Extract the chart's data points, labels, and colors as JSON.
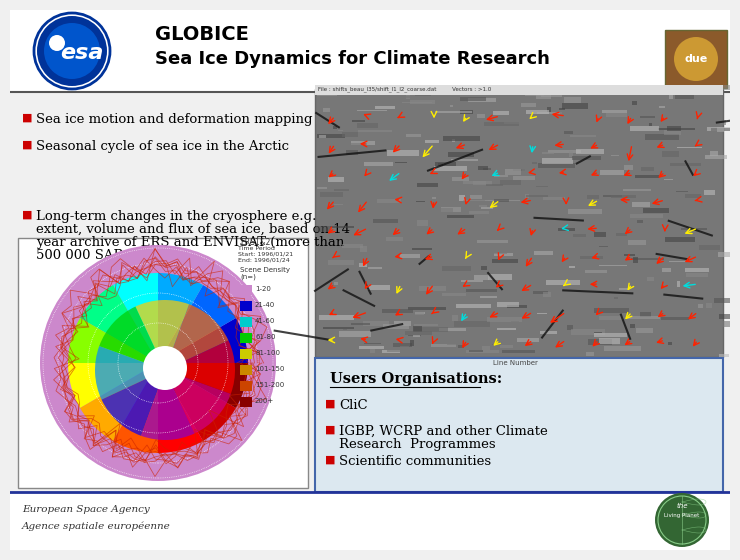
{
  "title_line1": "GLOBICE",
  "title_line2": "Sea Ice Dynamics for Climate Research",
  "bg_color": "#f0f0f0",
  "header_bg": "#ffffff",
  "bullet_color": "#cc0000",
  "bullet_items": [
    "Sea ice motion and deformation mapping",
    "Seasonal cycle of sea ice in the Arctic",
    "Long-term changes in the cryosphere e.g.\nextent, volume and flux of sea ice, based on 14\nyear archive of ERS and ENVISAT (more than\n500 000 SAR scenes)"
  ],
  "users_title": "Users Organisations:",
  "users_items": [
    "CliC",
    "IGBP, WCRP and other Climate\nResearch  Programmes",
    "Scientific communities"
  ],
  "footer_left_line1": "European Space Agency",
  "footer_left_line2": "Agence spatiale européenne",
  "title_fontsize": 14,
  "subtitle_fontsize": 13,
  "bullet_fontsize": 9.5,
  "users_fontsize": 9.5,
  "footer_fontsize": 7.5,
  "users_title_fontsize": 10.5,
  "polar_colors": [
    "#cc88cc",
    "#0000cc",
    "#00cccc",
    "#00cc00",
    "#cccc00",
    "#cc8800",
    "#cc4400",
    "#880000"
  ],
  "polar_labels": [
    "1-20",
    "21-40",
    "41-60",
    "61-80",
    "81-100",
    "101-150",
    "151-200",
    "200+"
  ]
}
